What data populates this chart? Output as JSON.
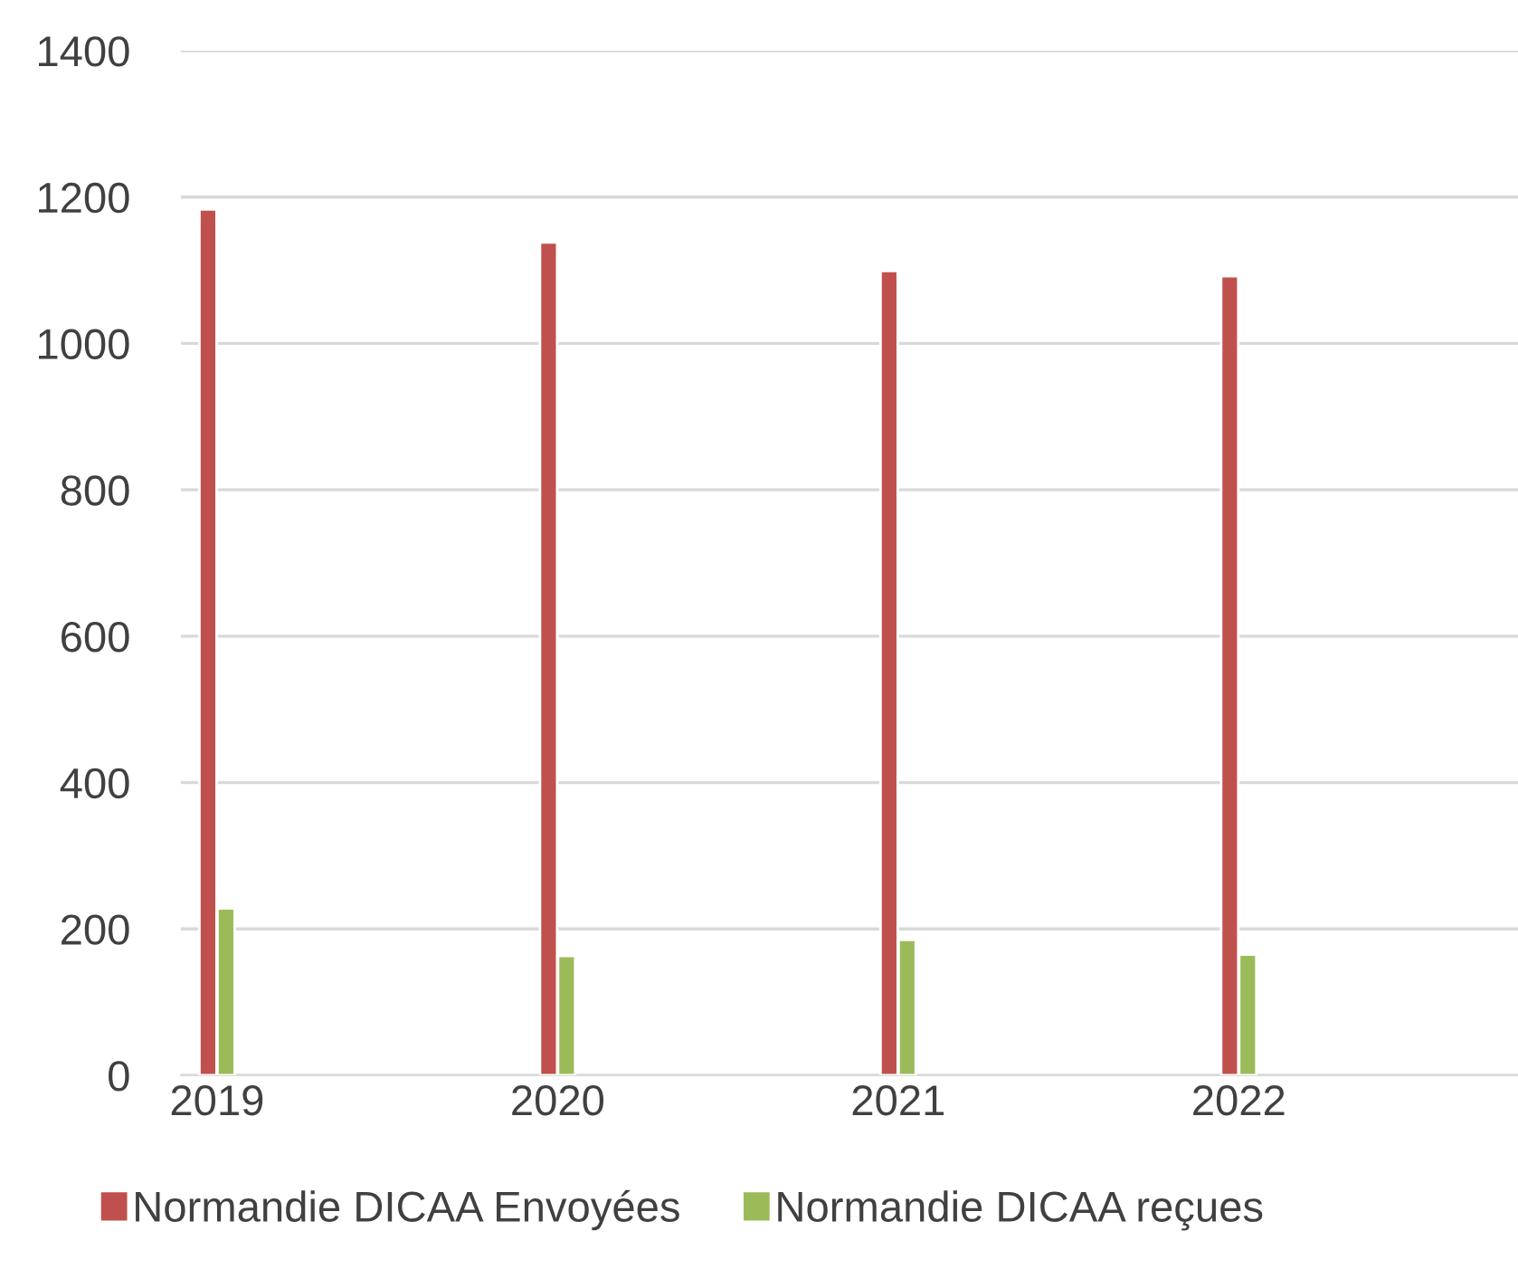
{
  "chart_data": {
    "type": "bar",
    "categories": [
      "2019",
      "2020",
      "2021",
      "2022"
    ],
    "series": [
      {
        "name": "Normandie DICAA Envoyées",
        "color": "#c0504d",
        "values": [
          1183,
          1138,
          1099,
          1092
        ]
      },
      {
        "name": "Normandie DICAA reçues",
        "color": "#9bbb59",
        "values": [
          228,
          163,
          185,
          165
        ]
      }
    ],
    "ylim": [
      0,
      1400
    ],
    "yticks": [
      0,
      200,
      400,
      600,
      800,
      1000,
      1200,
      1400
    ],
    "grid": "y",
    "legend": "bottom"
  }
}
